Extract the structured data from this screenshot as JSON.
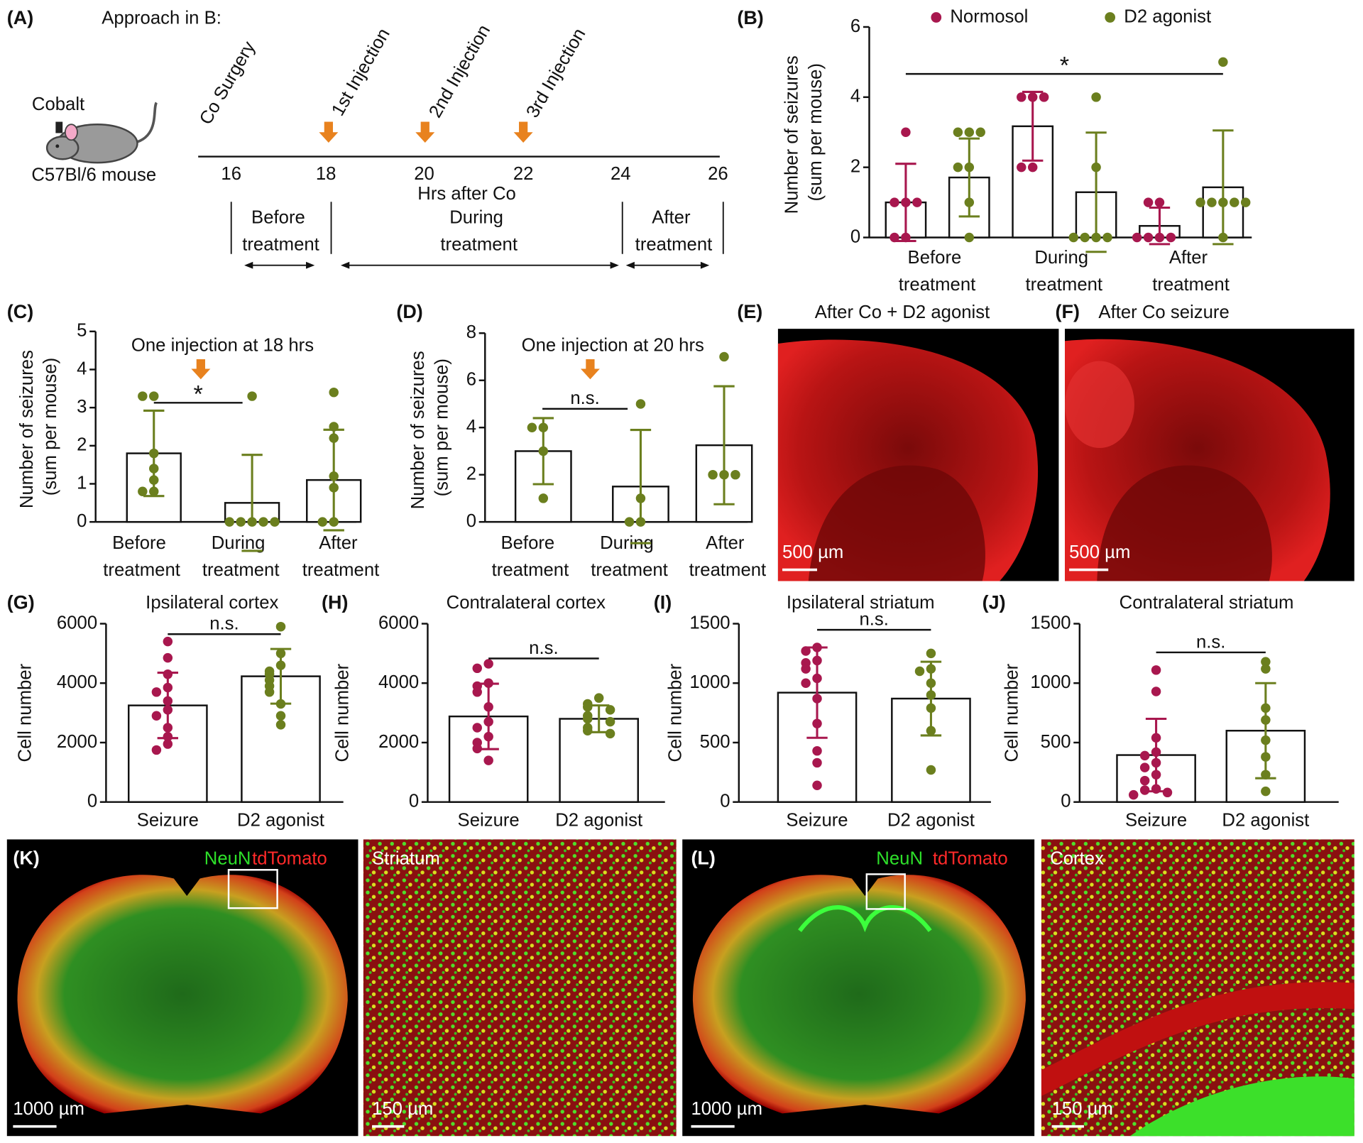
{
  "figure_a": {
    "panel": "(A)",
    "heading": "Approach in B:",
    "implant": "Cobalt",
    "animal": "C57Bl/6 mouse",
    "events": [
      "Co Surgery",
      "1st Injection",
      "2nd Injection",
      "3rd Injection"
    ],
    "hours": [
      16,
      18,
      20,
      22,
      24,
      26
    ],
    "hours_label": "Hrs after Co",
    "phases": [
      "Before treatment",
      "During treatment",
      "After treatment"
    ]
  },
  "chart_data": [
    {
      "type": "bar",
      "panel": "(B)",
      "ylabel": "Number of seizures (sum per mouse)",
      "categories": [
        "Before treatment",
        "During treatment",
        "After treatment"
      ],
      "ylim": [
        0,
        6
      ],
      "yticks": [
        0,
        2,
        4,
        6
      ],
      "significance": "*",
      "series": [
        {
          "name": "Normosol",
          "color": "#a8174e",
          "values": [
            1.0,
            3.17,
            0.33
          ],
          "errors": [
            1.1,
            0.98,
            0.52
          ],
          "points": [
            [
              3,
              1,
              1,
              1,
              0,
              0
            ],
            [
              4,
              4,
              4,
              2,
              2
            ],
            [
              1,
              1,
              0,
              0,
              0,
              0
            ]
          ]
        },
        {
          "name": "D2 agonist",
          "color": "#6b7f1e",
          "values": [
            1.71,
            1.29,
            1.43
          ],
          "errors": [
            1.11,
            1.7,
            1.62
          ],
          "points": [
            [
              3,
              3,
              3,
              2,
              2,
              1,
              0
            ],
            [
              4,
              2,
              0,
              0,
              0,
              0
            ],
            [
              5,
              1,
              1,
              1,
              1,
              1,
              0
            ]
          ]
        }
      ]
    },
    {
      "type": "bar",
      "panel": "(C)",
      "ylabel": "Number of seizures (sum per mouse)",
      "categories": [
        "Before treatment",
        "During treatment",
        "After treatment"
      ],
      "ylim": [
        0,
        5
      ],
      "yticks": [
        0,
        1,
        2,
        3,
        4,
        5
      ],
      "annotation": "One injection at 18 hrs",
      "significance": "*",
      "series": [
        {
          "color": "#6b7f1e",
          "values": [
            1.8,
            0.5,
            1.1
          ],
          "errors": [
            1.12,
            1.26,
            1.32
          ],
          "points": [
            [
              3.3,
              3.3,
              1.8,
              1.4,
              1.1,
              0.8,
              0.8
            ],
            [
              3.3,
              0,
              0,
              0,
              0,
              0
            ],
            [
              3.4,
              2.5,
              2.2,
              1.2,
              0.9,
              0,
              0
            ]
          ]
        }
      ]
    },
    {
      "type": "bar",
      "panel": "(D)",
      "ylabel": "Number of seizures (sum per mouse)",
      "categories": [
        "Before treatment",
        "During treatment",
        "After treatment"
      ],
      "ylim": [
        0,
        8
      ],
      "yticks": [
        0,
        2,
        4,
        6,
        8
      ],
      "annotation": "One injection at 20 hrs",
      "significance": "n.s.",
      "series": [
        {
          "color": "#6b7f1e",
          "values": [
            3,
            1.5,
            3.25
          ],
          "errors": [
            1.4,
            2.4,
            2.5
          ],
          "points": [
            [
              4,
              4,
              3,
              1
            ],
            [
              5,
              1,
              0,
              0
            ],
            [
              7,
              2,
              2,
              2
            ]
          ]
        }
      ]
    },
    {
      "type": "bar",
      "panel": "(G)",
      "title": "Ipsilateral cortex",
      "ylabel": "Cell number",
      "categories": [
        "Seizure",
        "D2 agonist"
      ],
      "ylim": [
        0,
        6000
      ],
      "yticks": [
        0,
        2000,
        4000,
        6000
      ],
      "significance": "n.s.",
      "colors": [
        "#a8174e",
        "#6b7f1e"
      ],
      "values": [
        3250,
        4230
      ],
      "errors": [
        1100,
        920
      ],
      "points": [
        [
          5400,
          4850,
          4300,
          3850,
          3700,
          3400,
          3100,
          2900,
          2500,
          2200,
          1950,
          1750
        ],
        [
          5900,
          5000,
          4600,
          4400,
          4300,
          4100,
          3900,
          3700,
          3300,
          2900,
          2600
        ]
      ]
    },
    {
      "type": "bar",
      "panel": "(H)",
      "title": "Contralateral cortex",
      "ylabel": "Cell number",
      "categories": [
        "Seizure",
        "D2 agonist"
      ],
      "ylim": [
        0,
        6000
      ],
      "yticks": [
        0,
        2000,
        4000,
        6000
      ],
      "significance": "n.s.",
      "colors": [
        "#a8174e",
        "#6b7f1e"
      ],
      "values": [
        2880,
        2800
      ],
      "errors": [
        1100,
        450
      ],
      "points": [
        [
          4650,
          4500,
          4000,
          3900,
          3700,
          3200,
          2700,
          2500,
          2200,
          2000,
          1800,
          1400
        ],
        [
          3500,
          3300,
          3200,
          3100,
          2900,
          2800,
          2700,
          2500,
          2400,
          2300
        ]
      ]
    },
    {
      "type": "bar",
      "panel": "(I)",
      "title": "Ipsilateral striatum",
      "ylabel": "Cell number",
      "categories": [
        "Seizure",
        "D2 agonist"
      ],
      "ylim": [
        0,
        1500
      ],
      "yticks": [
        0,
        500,
        1000,
        1500
      ],
      "significance": "n.s.",
      "colors": [
        "#a8174e",
        "#6b7f1e"
      ],
      "values": [
        920,
        870
      ],
      "errors": [
        380,
        310
      ],
      "points": [
        [
          1300,
          1270,
          1190,
          1170,
          1120,
          1040,
          1000,
          870,
          660,
          430,
          330,
          140
        ],
        [
          1250,
          1120,
          1100,
          1000,
          900,
          790,
          600,
          270
        ]
      ]
    },
    {
      "type": "bar",
      "panel": "(J)",
      "title": "Contralateral striatum",
      "ylabel": "Cell number",
      "categories": [
        "Seizure",
        "D2 agonist"
      ],
      "ylim": [
        0,
        1500
      ],
      "yticks": [
        0,
        500,
        1000,
        1500
      ],
      "significance": "n.s.",
      "colors": [
        "#a8174e",
        "#6b7f1e"
      ],
      "values": [
        395,
        600
      ],
      "errors": [
        305,
        400
      ],
      "points": [
        [
          1110,
          930,
          540,
          420,
          390,
          330,
          290,
          230,
          180,
          110,
          100,
          80,
          60
        ],
        [
          1180,
          1120,
          790,
          690,
          520,
          380,
          230,
          90
        ]
      ]
    }
  ],
  "images": {
    "e": {
      "panel": "(E)",
      "title": "After Co + D2 agonist",
      "scale": "500 µm"
    },
    "f": {
      "panel": "(F)",
      "title": "After Co seizure",
      "scale": "500 µm"
    },
    "k": {
      "panel": "(K)",
      "stain1": "NeuN",
      "stain2": "tdTomato",
      "inset": "Striatum",
      "scale_whole": "1000 µm",
      "scale_inset": "150 µm"
    },
    "l": {
      "panel": "(L)",
      "stain1": "NeuN",
      "stain2": "tdTomato",
      "inset": "Cortex",
      "scale_whole": "1000 µm",
      "scale_inset": "150 µm"
    }
  }
}
